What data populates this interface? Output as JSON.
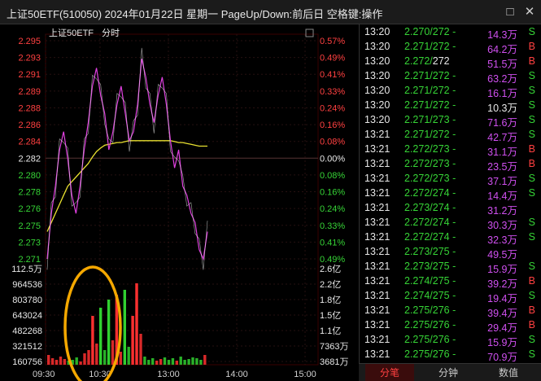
{
  "window": {
    "title": "上证50ETF(510050) 2024年01月22日 星期一 PageUp/Down:前后日 空格键:操作",
    "controls": [
      "□",
      "✕"
    ]
  },
  "chart": {
    "label_name": "上证50ETF",
    "label_mode": "分时",
    "price_axis": [
      "2.295",
      "2.293",
      "2.291",
      "2.289",
      "2.288",
      "2.286",
      "2.284",
      "2.282",
      "2.280",
      "2.278",
      "2.276",
      "2.275",
      "2.273",
      "2.271"
    ],
    "pct_axis": [
      "0.57%",
      "0.49%",
      "0.41%",
      "0.33%",
      "0.24%",
      "0.16%",
      "0.08%",
      "0.00%",
      "0.08%",
      "0.16%",
      "0.24%",
      "0.33%",
      "0.41%",
      "0.49%"
    ],
    "volume_axis_left": [
      "112.5万",
      "964536",
      "803780",
      "643024",
      "482268",
      "321512",
      "160756"
    ],
    "volume_axis_right": [
      "2.6亿",
      "2.2亿",
      "1.8亿",
      "1.5亿",
      "1.1亿",
      "7363万",
      "3681万"
    ],
    "time_axis": [
      "09:30",
      "10:30",
      "13:00",
      "14:00",
      "15:00"
    ],
    "colors": {
      "price_line": "#e040e0",
      "avg_line": "#e8e030",
      "up": "#ff3030",
      "down": "#30d030",
      "highlight": "#f5a800"
    }
  },
  "chart_data": {
    "type": "line",
    "x_range": [
      "09:30",
      "15:00"
    ],
    "y_range": [
      2.271,
      2.295
    ],
    "price": [
      2.271,
      2.276,
      2.279,
      2.283,
      2.285,
      2.282,
      2.278,
      2.276,
      2.279,
      2.283,
      2.286,
      2.29,
      2.292,
      2.289,
      2.287,
      2.283,
      2.285,
      2.288,
      2.29,
      2.287,
      2.284,
      2.285,
      2.288,
      2.293,
      2.291,
      2.288,
      2.286,
      2.289,
      2.291,
      2.288,
      2.284,
      2.281,
      2.283,
      2.279,
      2.278,
      2.276,
      2.275,
      2.272,
      2.271,
      2.274
    ],
    "average": [
      2.274,
      2.275,
      2.276,
      2.277,
      2.278,
      2.279,
      2.2795,
      2.28,
      2.2805,
      2.281,
      2.2815,
      2.2822,
      2.2828,
      2.2832,
      2.2835,
      2.2836,
      2.2837,
      2.2838,
      2.2838,
      2.2839,
      2.284,
      2.284,
      2.284,
      2.284,
      2.284,
      2.284,
      2.284,
      2.284,
      2.284,
      2.284,
      2.284,
      2.2839,
      2.2838,
      2.2838,
      2.2837,
      2.2836,
      2.2835,
      2.2834,
      2.2834,
      2.2834
    ]
  },
  "ticks": [
    {
      "time": "13:20",
      "price": "2.270/272",
      "dir": "-",
      "vol": "14.3万",
      "vol_color": "magenta",
      "side": "S",
      "side_color": "green",
      "price_color": "green"
    },
    {
      "time": "13:20",
      "price": "2.271/272",
      "dir": "-",
      "vol": "64.2万",
      "vol_color": "magenta",
      "side": "B",
      "side_color": "red",
      "price_color": "green"
    },
    {
      "time": "13:20",
      "price": "2.272/",
      "price2": "272",
      "dir": "",
      "vol": "51.5万",
      "vol_color": "magenta",
      "side": "B",
      "side_color": "red",
      "price_color": "green"
    },
    {
      "time": "13:20",
      "price": "2.271/272",
      "dir": "-",
      "vol": "63.2万",
      "vol_color": "magenta",
      "side": "S",
      "side_color": "green",
      "price_color": "green"
    },
    {
      "time": "13:20",
      "price": "2.271/272",
      "dir": "-",
      "vol": "16.1万",
      "vol_color": "magenta",
      "side": "S",
      "side_color": "green",
      "price_color": "green"
    },
    {
      "time": "13:20",
      "price": "2.271/272",
      "dir": "-",
      "vol": "10.3万",
      "vol_color": "white",
      "side": "S",
      "side_color": "green",
      "price_color": "green"
    },
    {
      "time": "13:20",
      "price": "2.271/273",
      "dir": "-",
      "vol": "71.6万",
      "vol_color": "magenta",
      "side": "S",
      "side_color": "green",
      "price_color": "green"
    },
    {
      "time": "13:21",
      "price": "2.271/272",
      "dir": "-",
      "vol": "42.7万",
      "vol_color": "magenta",
      "side": "S",
      "side_color": "green",
      "price_color": "green"
    },
    {
      "time": "13:21",
      "price": "2.272/273",
      "dir": "-",
      "vol": "31.1万",
      "vol_color": "magenta",
      "side": "B",
      "side_color": "red",
      "price_color": "green"
    },
    {
      "time": "13:21",
      "price": "2.272/273",
      "dir": "-",
      "vol": "23.5万",
      "vol_color": "magenta",
      "side": "B",
      "side_color": "red",
      "price_color": "green"
    },
    {
      "time": "13:21",
      "price": "2.272/273",
      "dir": "-",
      "vol": "37.1万",
      "vol_color": "magenta",
      "side": "S",
      "side_color": "green",
      "price_color": "green"
    },
    {
      "time": "13:21",
      "price": "2.272/274",
      "dir": "-",
      "vol": "14.4万",
      "vol_color": "magenta",
      "side": "S",
      "side_color": "green",
      "price_color": "green"
    },
    {
      "time": "13:21",
      "price": "2.273/274",
      "dir": "-",
      "vol": "31.2万",
      "vol_color": "magenta",
      "side": "",
      "side_color": "green",
      "price_color": "green"
    },
    {
      "time": "13:21",
      "price": "2.272/274",
      "dir": "-",
      "vol": "30.3万",
      "vol_color": "magenta",
      "side": "S",
      "side_color": "green",
      "price_color": "green"
    },
    {
      "time": "13:21",
      "price": "2.272/274",
      "dir": "-",
      "vol": "32.3万",
      "vol_color": "magenta",
      "side": "S",
      "side_color": "green",
      "price_color": "green"
    },
    {
      "time": "13:21",
      "price": "2.273/275",
      "dir": "-",
      "vol": "49.5万",
      "vol_color": "magenta",
      "side": "",
      "side_color": "green",
      "price_color": "green"
    },
    {
      "time": "13:21",
      "price": "2.273/275",
      "dir": "-",
      "vol": "15.9万",
      "vol_color": "magenta",
      "side": "S",
      "side_color": "green",
      "price_color": "green"
    },
    {
      "time": "13:21",
      "price": "2.274/275",
      "dir": "-",
      "vol": "39.2万",
      "vol_color": "magenta",
      "side": "B",
      "side_color": "red",
      "price_color": "green"
    },
    {
      "time": "13:21",
      "price": "2.274/275",
      "dir": "-",
      "vol": "19.4万",
      "vol_color": "magenta",
      "side": "S",
      "side_color": "green",
      "price_color": "green"
    },
    {
      "time": "13:21",
      "price": "2.275/276",
      "dir": "-",
      "vol": "39.4万",
      "vol_color": "magenta",
      "side": "B",
      "side_color": "red",
      "price_color": "green"
    },
    {
      "time": "13:21",
      "price": "2.275/276",
      "dir": "-",
      "vol": "29.4万",
      "vol_color": "magenta",
      "side": "B",
      "side_color": "red",
      "price_color": "green"
    },
    {
      "time": "13:21",
      "price": "2.275/276",
      "dir": "-",
      "vol": "15.9万",
      "vol_color": "magenta",
      "side": "S",
      "side_color": "green",
      "price_color": "green"
    },
    {
      "time": "13:21",
      "price": "2.275/276",
      "dir": "-",
      "vol": "70.9万",
      "vol_color": "magenta",
      "side": "S",
      "side_color": "green",
      "price_color": "green"
    }
  ],
  "tabs": [
    "分笔",
    "分钟",
    "数值"
  ]
}
